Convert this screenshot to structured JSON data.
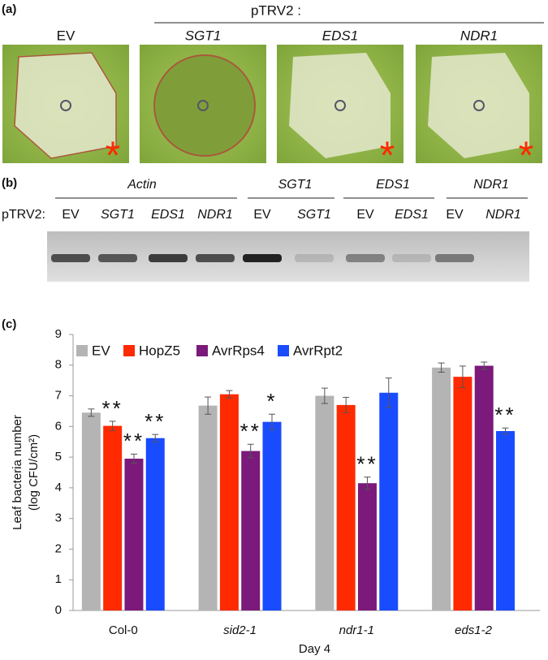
{
  "panel_a": {
    "label": "(a)",
    "header": "pTRV2 :",
    "photos": [
      {
        "label": "EV",
        "asterisk": "*"
      },
      {
        "label": "SGT1"
      },
      {
        "label": "EDS1",
        "asterisk": "*"
      },
      {
        "label": "NDR1",
        "asterisk": "*"
      }
    ]
  },
  "panel_b": {
    "label": "(b)",
    "row_label": "pTRV2:",
    "groups": [
      "Actin",
      "SGT1",
      "EDS1",
      "NDR1"
    ],
    "lanes": [
      "EV",
      "SGT1",
      "EDS1",
      "NDR1",
      "EV",
      "SGT1",
      "EV",
      "EDS1",
      "EV",
      "NDR1"
    ]
  },
  "chart_data": {
    "type": "bar",
    "label": "(c)",
    "ylabel": [
      "Leaf bacteria number",
      "(log CFU/cm²)"
    ],
    "xlabel": "Day 4",
    "categories": [
      "Col-0",
      "sid2-1",
      "ndr1-1",
      "eds1-2"
    ],
    "ylim": [
      0,
      9
    ],
    "yticks": [
      0,
      1,
      2,
      3,
      4,
      5,
      6,
      7,
      8,
      9
    ],
    "grid": false,
    "legend": "top-left",
    "series": [
      {
        "name": "EV",
        "color": "#b4b4b4",
        "values": [
          6.45,
          6.68,
          7.0,
          7.92
        ],
        "errors": [
          0.12,
          0.28,
          0.25,
          0.15
        ],
        "labels": [
          null,
          null,
          null,
          null
        ]
      },
      {
        "name": "HopZ5",
        "color": "#ff2a00",
        "values": [
          6.02,
          7.05,
          6.7,
          7.62
        ],
        "errors": [
          0.15,
          0.12,
          0.25,
          0.35
        ],
        "labels": [
          "**",
          null,
          null,
          null
        ]
      },
      {
        "name": "AvrRps4",
        "color": "#7b1a7b",
        "values": [
          4.95,
          5.2,
          4.15,
          7.98
        ],
        "errors": [
          0.15,
          0.22,
          0.2,
          0.12
        ],
        "labels": [
          "**",
          "**",
          "**",
          null
        ]
      },
      {
        "name": "AvrRpt2",
        "color": "#1a4cff",
        "values": [
          5.62,
          6.15,
          7.1,
          5.85
        ],
        "errors": [
          0.12,
          0.25,
          0.48,
          0.1
        ],
        "labels": [
          "**",
          "*",
          null,
          "**"
        ]
      }
    ]
  }
}
